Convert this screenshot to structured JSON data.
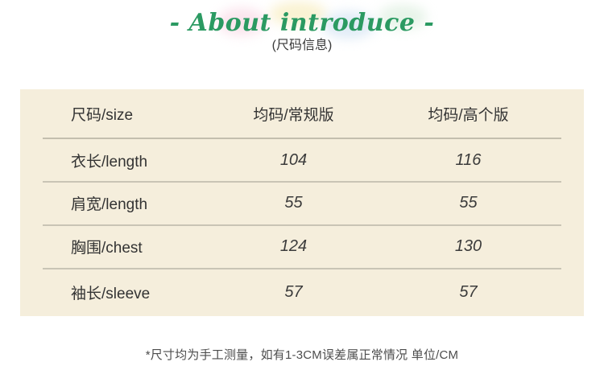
{
  "header": {
    "title": "- About introduce -",
    "subtitle": "(尺码信息)"
  },
  "colors": {
    "accent_green": "#2b9a62",
    "panel_background": "#f5eedc",
    "divider": "#c9c4b5",
    "table_text": "#333333",
    "footer_text": "#4d4d4d"
  },
  "size_table": {
    "columns": [
      "尺码/size",
      "均码/常规版",
      "均码/高个版"
    ],
    "rows": [
      {
        "label": "衣长/length",
        "regular": "104",
        "tall": "116"
      },
      {
        "label": "肩宽/length",
        "regular": "55",
        "tall": "55"
      },
      {
        "label": "胸围/chest",
        "regular": "124",
        "tall": "130"
      },
      {
        "label": "袖长/sleeve",
        "regular": "57",
        "tall": "57"
      }
    ]
  },
  "footer": {
    "note": "*尺寸均为手工测量，如有1-3CM误差属正常情况 单位/CM"
  }
}
